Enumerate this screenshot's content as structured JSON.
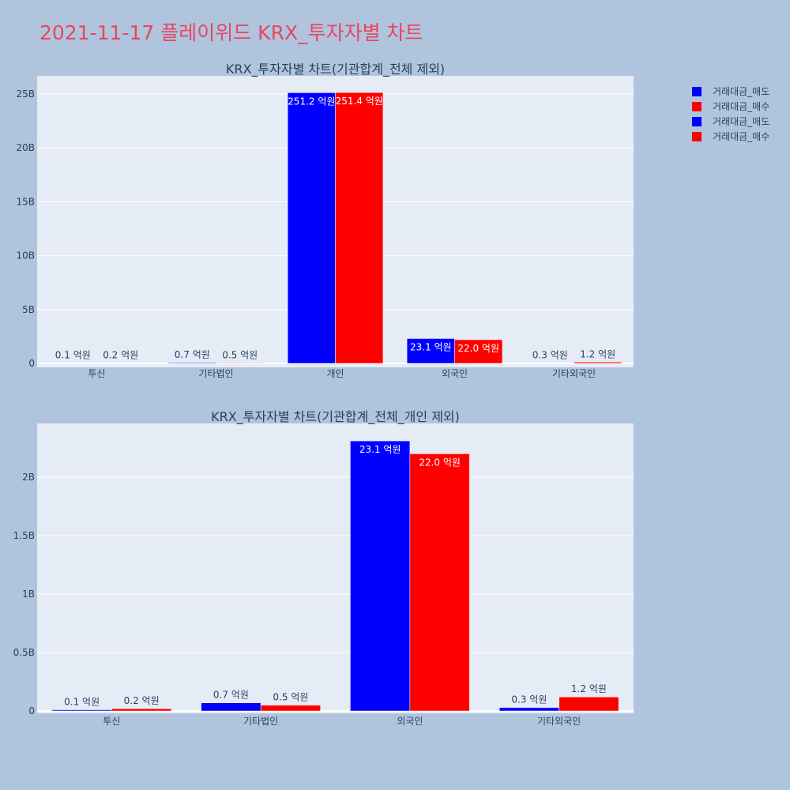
{
  "page_title": "2021-11-17 플레이위드 KRX_투자자별 차트",
  "legend": [
    {
      "label": "거래대금_매도",
      "color": "#0000ff"
    },
    {
      "label": "거래대금_매수",
      "color": "#ff0000"
    },
    {
      "label": "거래대금_매도",
      "color": "#0000ff"
    },
    {
      "label": "거래대금_매수",
      "color": "#ff0000"
    }
  ],
  "colors": {
    "sell": "#0000ff",
    "buy": "#ff0000",
    "plot_bg": "#e5ecf6",
    "page_bg": "#b0c4de",
    "title": "#e8475f"
  },
  "chart_data": [
    {
      "type": "bar",
      "title": "KRX_투자자별 차트(기관합계_전체 제외)",
      "categories": [
        "투신",
        "기타법인",
        "개인",
        "외국인",
        "기타외국인"
      ],
      "ylim": [
        0,
        26800000000
      ],
      "yticks": [
        0,
        5000000000,
        10000000000,
        15000000000,
        20000000000,
        25000000000
      ],
      "ytick_labels": [
        "0",
        "5B",
        "10B",
        "15B",
        "20B",
        "25B"
      ],
      "series": [
        {
          "name": "거래대금_매도",
          "color": "#0000ff",
          "values": [
            10000000,
            70000000,
            25120000000,
            2310000000,
            30000000
          ],
          "labels": [
            "0.1 억원",
            "0.7 억원",
            "251.2 억원",
            "23.1 억원",
            "0.3 억원"
          ]
        },
        {
          "name": "거래대금_매수",
          "color": "#ff0000",
          "values": [
            20000000,
            50000000,
            25140000000,
            2200000000,
            120000000
          ],
          "labels": [
            "0.2 억원",
            "0.5 억원",
            "251.4 억원",
            "22.0 억원",
            "1.2 억원"
          ]
        }
      ],
      "grid": true
    },
    {
      "type": "bar",
      "title": "KRX_투자자별 차트(기관합계_전체_개인 제외)",
      "categories": [
        "투신",
        "기타법인",
        "외국인",
        "기타외국인"
      ],
      "ylim": [
        0,
        2430000000
      ],
      "yticks": [
        0,
        500000000,
        1000000000,
        1500000000,
        2000000000
      ],
      "ytick_labels": [
        "0",
        "0.5B",
        "1B",
        "1.5B",
        "2B"
      ],
      "series": [
        {
          "name": "거래대금_매도",
          "color": "#0000ff",
          "values": [
            10000000,
            70000000,
            2310000000,
            30000000
          ],
          "labels": [
            "0.1 억원",
            "0.7 억원",
            "23.1 억원",
            "0.3 억원"
          ]
        },
        {
          "name": "거래대금_매수",
          "color": "#ff0000",
          "values": [
            20000000,
            50000000,
            2200000000,
            120000000
          ],
          "labels": [
            "0.2 억원",
            "0.5 억원",
            "22.0 억원",
            "1.2 억원"
          ]
        }
      ],
      "grid": true
    }
  ]
}
